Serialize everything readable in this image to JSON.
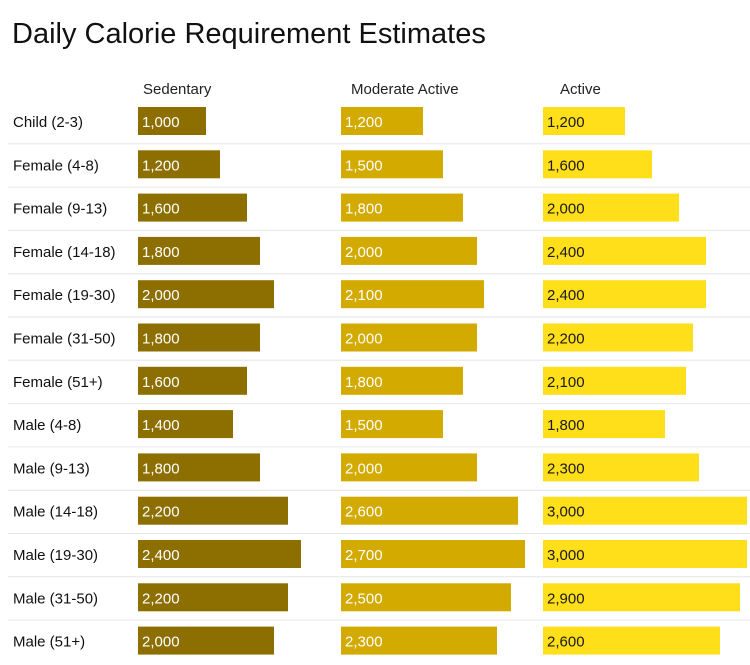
{
  "chart_data": {
    "type": "bar",
    "title": "Daily Calorie Requirement Estimates",
    "categories": [
      "Child (2-3)",
      "Female (4-8)",
      "Female (9-13)",
      "Female (14-18)",
      "Female (19-30)",
      "Female (31-50)",
      "Female (51+)",
      "Male (4-8)",
      "Male (9-13)",
      "Male (14-18)",
      "Male (19-30)",
      "Male (31-50)",
      "Male (51+)"
    ],
    "series": [
      {
        "name": "Sedentary",
        "color": "#8c6f00",
        "values": [
          1000,
          1200,
          1600,
          1800,
          2000,
          1800,
          1600,
          1400,
          1800,
          2200,
          2400,
          2200,
          2000
        ],
        "labels": [
          "1,000",
          "1,200",
          "1,600",
          "1,800",
          "2,000",
          "1,800",
          "1,600",
          "1,400",
          "1,800",
          "2,200",
          "2,400",
          "2,200",
          "2,000"
        ]
      },
      {
        "name": "Moderate Active",
        "color": "#d2aa00",
        "values": [
          1200,
          1500,
          1800,
          2000,
          2100,
          2000,
          1800,
          1500,
          2000,
          2600,
          2700,
          2500,
          2300
        ],
        "labels": [
          "1,200",
          "1,500",
          "1,800",
          "2,000",
          "2,100",
          "2,000",
          "1,800",
          "1,500",
          "2,000",
          "2,600",
          "2,700",
          "2,500",
          "2,300"
        ]
      },
      {
        "name": "Active",
        "color": "#ffde1a",
        "values": [
          1200,
          1600,
          2000,
          2400,
          2400,
          2200,
          2100,
          1800,
          2300,
          3000,
          3000,
          2900,
          2600
        ],
        "labels": [
          "1,200",
          "1,600",
          "2,000",
          "2,400",
          "2,400",
          "2,200",
          "2,100",
          "1,800",
          "2,300",
          "3,000",
          "3,000",
          "2,900",
          "2,600"
        ]
      }
    ],
    "xlim": [
      0,
      3000
    ],
    "grid": false,
    "legend": "column headers"
  }
}
